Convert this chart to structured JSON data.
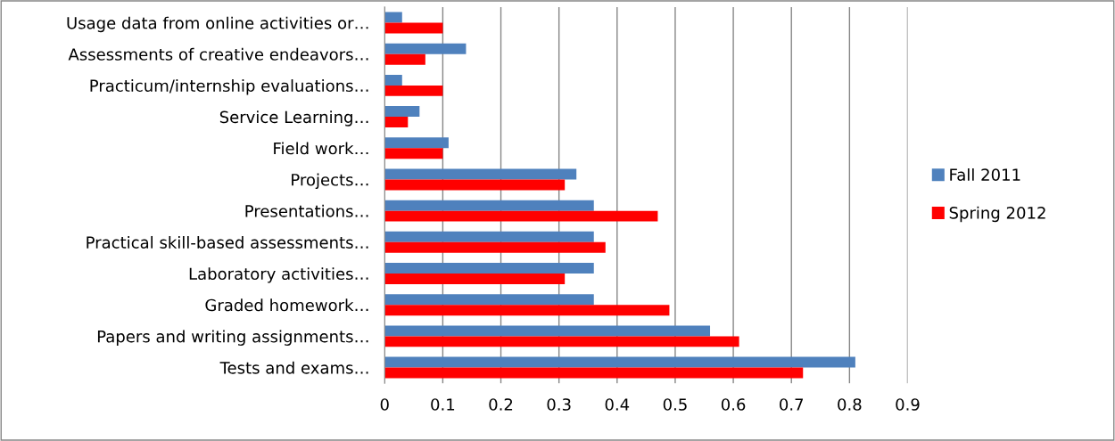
{
  "chart_data": {
    "type": "bar",
    "orientation": "horizontal",
    "categories": [
      "Usage data from online activities or…",
      "Assessments of creative endeavors…",
      "Practicum/internship evaluations…",
      "Service Learning…",
      "Field work…",
      "Projects…",
      "Presentations…",
      "Practical skill-based assessments…",
      "Laboratory activities…",
      "Graded homework…",
      "Papers and writing assignments…",
      "Tests and exams…"
    ],
    "series": [
      {
        "name": "Fall 2011",
        "color": "#4f81bd",
        "values": [
          0.03,
          0.14,
          0.03,
          0.06,
          0.11,
          0.33,
          0.36,
          0.36,
          0.36,
          0.36,
          0.56,
          0.81
        ]
      },
      {
        "name": "Spring 2012",
        "color": "#ff0000",
        "values": [
          0.1,
          0.07,
          0.1,
          0.04,
          0.1,
          0.31,
          0.47,
          0.38,
          0.31,
          0.49,
          0.61,
          0.72
        ]
      }
    ],
    "xlim": [
      0,
      0.9
    ],
    "xticks": [
      0,
      0.1,
      0.2,
      0.3,
      0.4,
      0.5,
      0.6,
      0.7,
      0.8,
      0.9
    ],
    "grid": "x",
    "legend": "right"
  }
}
